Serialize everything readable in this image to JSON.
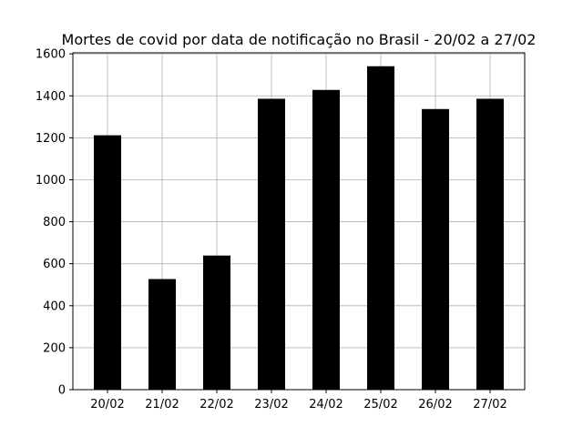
{
  "chart_data": {
    "type": "bar",
    "title": "Mortes de covid por data de notificação no Brasil - 20/02 a 27/02",
    "xlabel": "",
    "ylabel": "",
    "categories": [
      "20/02",
      "21/02",
      "22/02",
      "23/02",
      "24/02",
      "25/02",
      "26/02",
      "27/02"
    ],
    "values": [
      1212,
      527,
      639,
      1386,
      1428,
      1541,
      1337,
      1386
    ],
    "ylim": [
      0,
      1605
    ],
    "yticks": [
      0,
      200,
      400,
      600,
      800,
      1000,
      1200,
      1400,
      1600
    ],
    "grid": true,
    "bar_color": "#000000",
    "grid_color": "#b0b0b0"
  }
}
